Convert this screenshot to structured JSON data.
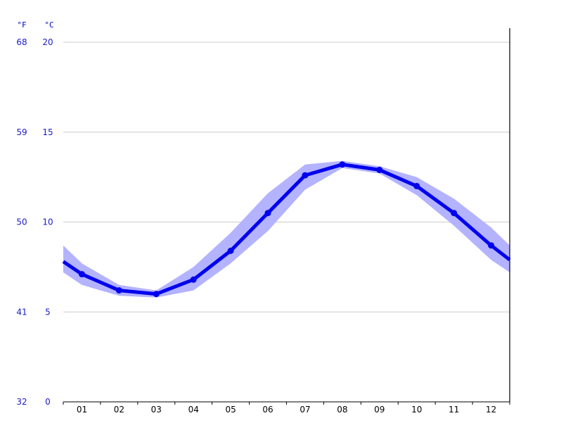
{
  "chart_data": {
    "type": "line",
    "title": "",
    "xlabel": "",
    "ylabel": "",
    "units": {
      "fahrenheit": "°F",
      "celsius": "°C"
    },
    "categories": [
      "01",
      "02",
      "03",
      "04",
      "05",
      "06",
      "07",
      "08",
      "09",
      "10",
      "11",
      "12"
    ],
    "series": [
      {
        "values": [
          7.1,
          6.2,
          6.0,
          6.8,
          8.4,
          10.5,
          12.6,
          13.2,
          12.9,
          12.0,
          10.5,
          8.7
        ],
        "color": "#0000ee"
      }
    ],
    "band": {
      "low": [
        6.5,
        5.9,
        5.8,
        6.2,
        7.7,
        9.5,
        11.8,
        13.0,
        12.7,
        11.5,
        9.8,
        7.9
      ],
      "high": [
        7.7,
        6.5,
        6.2,
        7.5,
        9.4,
        11.6,
        13.2,
        13.4,
        13.1,
        12.5,
        11.3,
        9.7
      ],
      "color": "#b3b3ff"
    },
    "edge_values": {
      "start": 7.8,
      "end": 7.9
    },
    "edge_band": {
      "start_low": 7.2,
      "start_high": 8.7,
      "end_low": 7.2,
      "end_high": 8.7
    },
    "ylim": [
      0,
      20
    ],
    "yticks_celsius": [
      "0",
      "5",
      "10",
      "15",
      "20"
    ],
    "yticks_fahrenheit": [
      "32",
      "41",
      "50",
      "59",
      "68"
    ],
    "grid": true,
    "colors": {
      "line": "#0000ee",
      "band": "#b3b3ff",
      "grid": "#cccccc",
      "axis_text": "#1a1acc"
    }
  }
}
